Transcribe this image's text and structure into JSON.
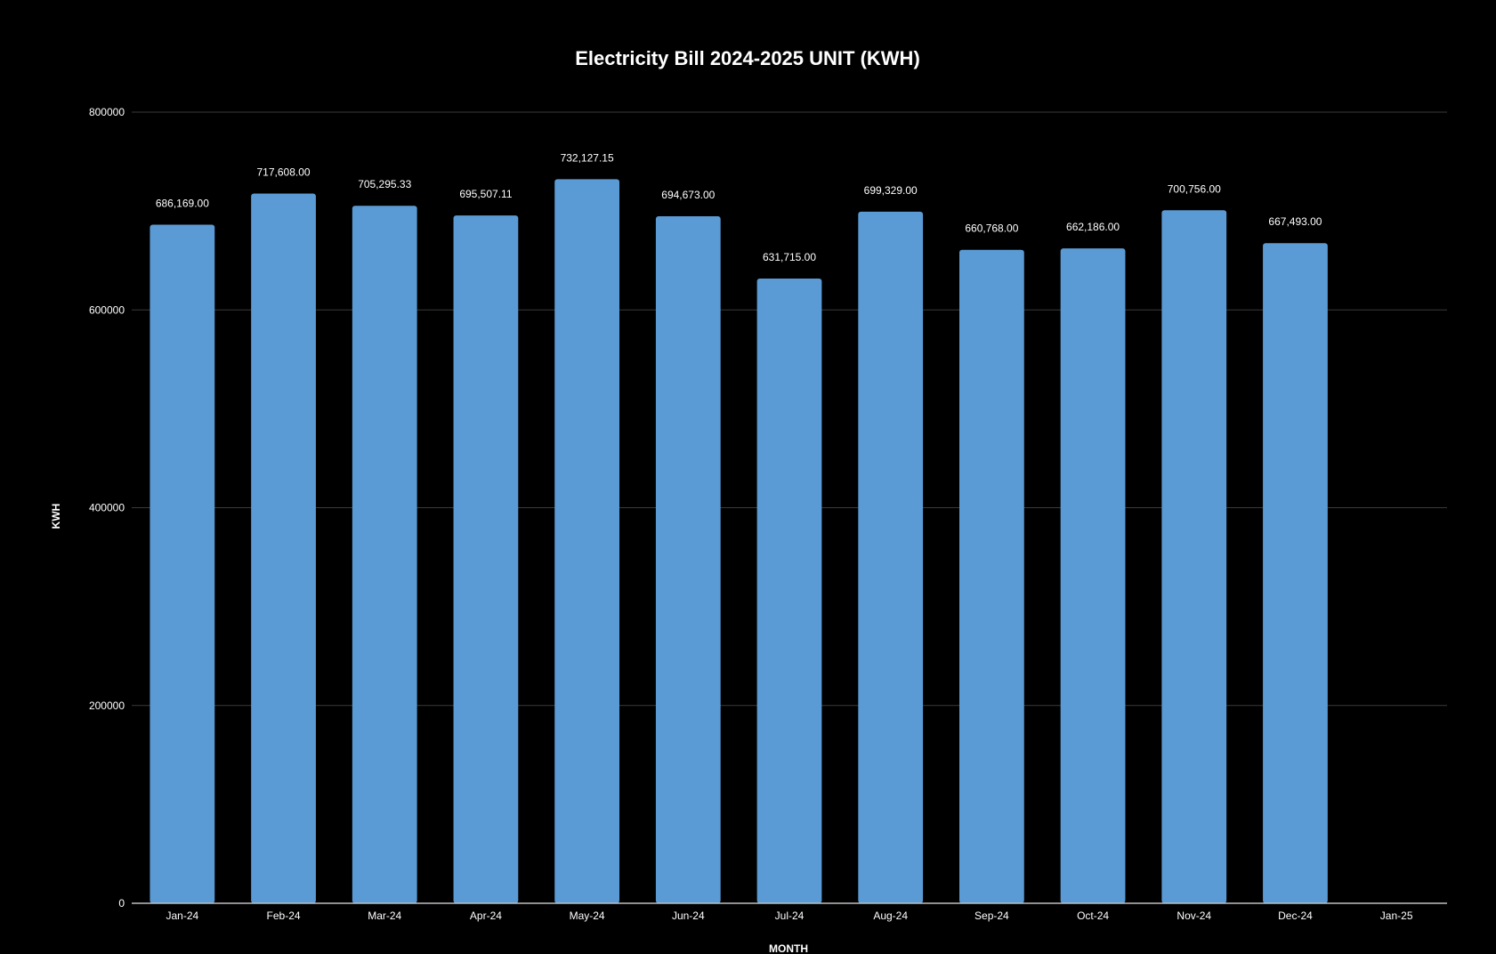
{
  "chart_data": {
    "type": "bar",
    "title": "Electricity Bill 2024-2025 UNIT (KWH)",
    "xlabel": "MONTH",
    "ylabel": "KWH",
    "categories": [
      "Jan-24",
      "Feb-24",
      "Mar-24",
      "Apr-24",
      "May-24",
      "Jun-24",
      "Jul-24",
      "Aug-24",
      "Sep-24",
      "Oct-24",
      "Nov-24",
      "Dec-24",
      "Jan-25"
    ],
    "values": [
      686169.0,
      717608.0,
      705295.33,
      695507.11,
      732127.15,
      694673.0,
      631715.0,
      699329.0,
      660768.0,
      662186.0,
      700756.0,
      667493.0,
      null
    ],
    "data_labels": [
      "686,169.00",
      "717,608.00",
      "705,295.33",
      "695,507.11",
      "732,127.15",
      "694,673.00",
      "631,715.00",
      "699,329.00",
      "660,768.00",
      "662,186.00",
      "700,756.00",
      "667,493.00",
      ""
    ],
    "ylim": [
      0,
      800000
    ],
    "yticks": [
      0,
      200000,
      400000,
      600000,
      800000
    ],
    "ytick_labels": [
      "0",
      "200000",
      "400000",
      "600000",
      "800000"
    ],
    "grid": true,
    "legend": "none",
    "colors": {
      "background": "#000000",
      "bar": "#5b9bd5",
      "grid": "#3a3a3a",
      "text": "#ffffff",
      "axis": "#bfbfbf"
    }
  }
}
